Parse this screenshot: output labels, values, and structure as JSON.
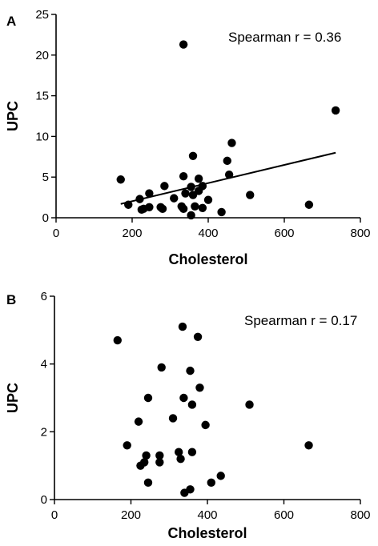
{
  "chart_data": [
    {
      "panel": "A",
      "type": "scatter",
      "xlabel": "Cholesterol",
      "ylabel": "UPC",
      "xlim": [
        0,
        800
      ],
      "ylim": [
        0,
        25
      ],
      "xticks": [
        0,
        200,
        400,
        600,
        800
      ],
      "yticks": [
        0,
        5,
        10,
        15,
        20,
        25
      ],
      "annotation": "Spearman r = 0.36",
      "regression": {
        "x": [
          170,
          735
        ],
        "y": [
          1.7,
          8.0
        ]
      },
      "points": [
        {
          "x": 335,
          "y": 21.3
        },
        {
          "x": 735,
          "y": 13.2
        },
        {
          "x": 462,
          "y": 9.2
        },
        {
          "x": 360,
          "y": 7.6
        },
        {
          "x": 450,
          "y": 7.0
        },
        {
          "x": 455,
          "y": 5.3
        },
        {
          "x": 335,
          "y": 5.1
        },
        {
          "x": 375,
          "y": 4.8
        },
        {
          "x": 170,
          "y": 4.7
        },
        {
          "x": 285,
          "y": 3.9
        },
        {
          "x": 385,
          "y": 3.9
        },
        {
          "x": 355,
          "y": 3.8
        },
        {
          "x": 375,
          "y": 3.3
        },
        {
          "x": 245,
          "y": 3.0
        },
        {
          "x": 340,
          "y": 3.0
        },
        {
          "x": 360,
          "y": 2.8
        },
        {
          "x": 510,
          "y": 2.8
        },
        {
          "x": 310,
          "y": 2.4
        },
        {
          "x": 220,
          "y": 2.3
        },
        {
          "x": 400,
          "y": 2.2
        },
        {
          "x": 190,
          "y": 1.6
        },
        {
          "x": 665,
          "y": 1.6
        },
        {
          "x": 330,
          "y": 1.4
        },
        {
          "x": 365,
          "y": 1.4
        },
        {
          "x": 245,
          "y": 1.3
        },
        {
          "x": 275,
          "y": 1.3
        },
        {
          "x": 230,
          "y": 1.1
        },
        {
          "x": 280,
          "y": 1.1
        },
        {
          "x": 335,
          "y": 1.1
        },
        {
          "x": 385,
          "y": 1.2
        },
        {
          "x": 435,
          "y": 0.7
        },
        {
          "x": 355,
          "y": 0.3
        },
        {
          "x": 225,
          "y": 1.0
        }
      ]
    },
    {
      "panel": "B",
      "type": "scatter",
      "xlabel": "Cholesterol",
      "ylabel": "UPC",
      "xlim": [
        0,
        800
      ],
      "ylim": [
        0,
        6
      ],
      "xticks": [
        0,
        200,
        400,
        600,
        800
      ],
      "yticks": [
        0,
        2,
        4,
        6
      ],
      "annotation": "Spearman r = 0.17",
      "points": [
        {
          "x": 335,
          "y": 5.1
        },
        {
          "x": 375,
          "y": 4.8
        },
        {
          "x": 165,
          "y": 4.7
        },
        {
          "x": 280,
          "y": 3.9
        },
        {
          "x": 355,
          "y": 3.8
        },
        {
          "x": 380,
          "y": 3.3
        },
        {
          "x": 245,
          "y": 3.0
        },
        {
          "x": 338,
          "y": 3.0
        },
        {
          "x": 360,
          "y": 2.8
        },
        {
          "x": 510,
          "y": 2.8
        },
        {
          "x": 310,
          "y": 2.4
        },
        {
          "x": 220,
          "y": 2.3
        },
        {
          "x": 395,
          "y": 2.2
        },
        {
          "x": 190,
          "y": 1.6
        },
        {
          "x": 665,
          "y": 1.6
        },
        {
          "x": 325,
          "y": 1.4
        },
        {
          "x": 360,
          "y": 1.4
        },
        {
          "x": 240,
          "y": 1.3
        },
        {
          "x": 275,
          "y": 1.3
        },
        {
          "x": 235,
          "y": 1.1
        },
        {
          "x": 275,
          "y": 1.1
        },
        {
          "x": 330,
          "y": 1.2
        },
        {
          "x": 225,
          "y": 1.0
        },
        {
          "x": 435,
          "y": 0.7
        },
        {
          "x": 410,
          "y": 0.5
        },
        {
          "x": 245,
          "y": 0.5
        },
        {
          "x": 355,
          "y": 0.3
        },
        {
          "x": 340,
          "y": 0.2
        }
      ]
    }
  ]
}
